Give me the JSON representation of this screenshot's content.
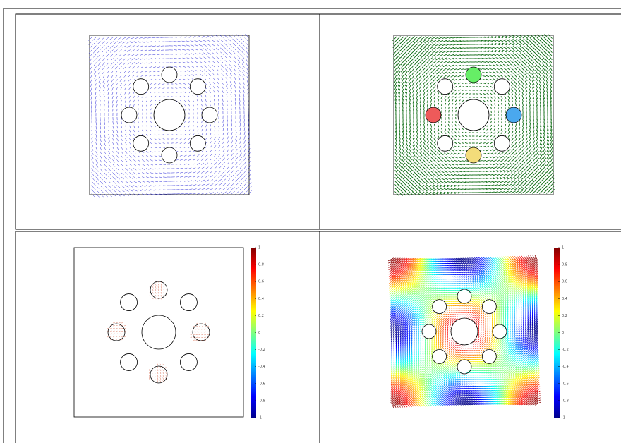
{
  "colorbars": [
    {
      "ticks": [
        1,
        0.8,
        0.6,
        0.4,
        0.2,
        0,
        -0.2,
        -0.4,
        -0.6,
        -0.8,
        -1
      ]
    },
    {
      "ticks": [
        1,
        0.8,
        0.6,
        0.4,
        0.2,
        0,
        -0.2,
        -0.4,
        -0.6,
        -0.8,
        -1
      ]
    }
  ]
}
